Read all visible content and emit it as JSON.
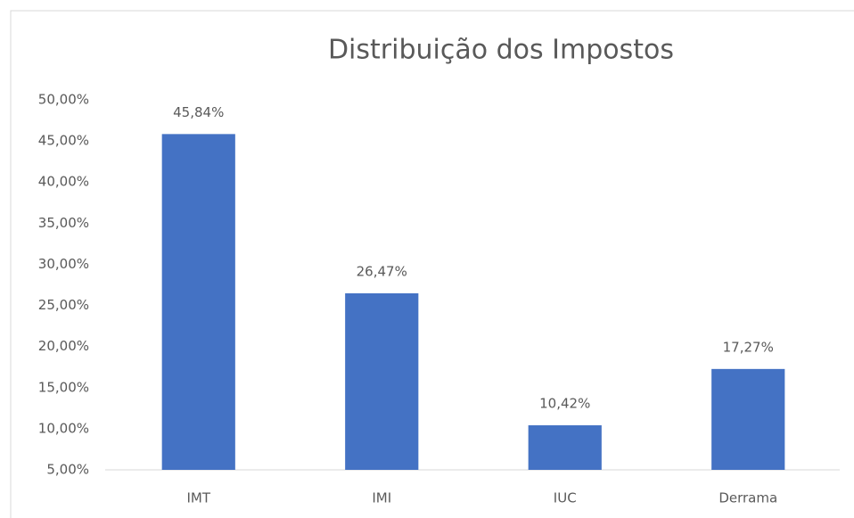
{
  "chart_data": {
    "type": "bar",
    "title": "Distribuição dos Impostos",
    "categories": [
      "IMT",
      "IMI",
      "IUC",
      "Derrama"
    ],
    "values": [
      45.84,
      26.47,
      10.42,
      17.27
    ],
    "value_labels": [
      "45,84%",
      "26,47%",
      "10,42%",
      "17,27%"
    ],
    "color": "#4472c4",
    "ylim": [
      5,
      50
    ],
    "yticks": [
      {
        "value": 5,
        "label": "5,00%"
      },
      {
        "value": 10,
        "label": "10,00%"
      },
      {
        "value": 15,
        "label": "15,00%"
      },
      {
        "value": 20,
        "label": "20,00%"
      },
      {
        "value": 25,
        "label": "25,00%"
      },
      {
        "value": 30,
        "label": "30,00%"
      },
      {
        "value": 35,
        "label": "35,00%"
      },
      {
        "value": 40,
        "label": "40,00%"
      },
      {
        "value": 45,
        "label": "45,00%"
      },
      {
        "value": 50,
        "label": "50,00%"
      }
    ],
    "grid": false
  }
}
